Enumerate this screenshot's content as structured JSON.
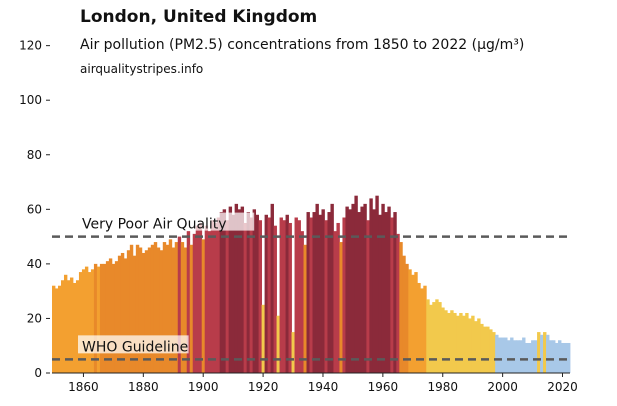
{
  "chart_data": {
    "type": "bar",
    "title": "London, United Kingdom",
    "subtitle": "Air pollution (PM2.5) concentrations from 1850 to 2022 (µg/m³)",
    "source": "airqualitystripes.info",
    "xlim": [
      1850,
      2022
    ],
    "ylim": [
      0,
      125
    ],
    "x_ticks": [
      "1860",
      "1880",
      "1900",
      "1920",
      "1940",
      "1960",
      "1980",
      "2000",
      "2020"
    ],
    "y_ticks": [
      "0",
      "20",
      "40",
      "60",
      "80",
      "100",
      "120"
    ],
    "grid": false,
    "reference_lines": [
      {
        "label": "Very Poor Air Quality",
        "value": 50
      },
      {
        "label": "WHO Guideline",
        "value": 5
      }
    ],
    "x": [
      1850,
      1851,
      1852,
      1853,
      1854,
      1855,
      1856,
      1857,
      1858,
      1859,
      1860,
      1861,
      1862,
      1863,
      1864,
      1865,
      1866,
      1867,
      1868,
      1869,
      1870,
      1871,
      1872,
      1873,
      1874,
      1875,
      1876,
      1877,
      1878,
      1879,
      1880,
      1881,
      1882,
      1883,
      1884,
      1885,
      1886,
      1887,
      1888,
      1889,
      1890,
      1891,
      1892,
      1893,
      1894,
      1895,
      1896,
      1897,
      1898,
      1899,
      1900,
      1901,
      1902,
      1903,
      1904,
      1905,
      1906,
      1907,
      1908,
      1909,
      1910,
      1911,
      1912,
      1913,
      1914,
      1915,
      1916,
      1917,
      1918,
      1919,
      1920,
      1921,
      1922,
      1923,
      1924,
      1925,
      1926,
      1927,
      1928,
      1929,
      1930,
      1931,
      1932,
      1933,
      1934,
      1935,
      1936,
      1937,
      1938,
      1939,
      1940,
      1941,
      1942,
      1943,
      1944,
      1945,
      1946,
      1947,
      1948,
      1949,
      1950,
      1951,
      1952,
      1953,
      1954,
      1955,
      1956,
      1957,
      1958,
      1959,
      1960,
      1961,
      1962,
      1963,
      1964,
      1965,
      1966,
      1967,
      1968,
      1969,
      1970,
      1971,
      1972,
      1973,
      1974,
      1975,
      1976,
      1977,
      1978,
      1979,
      1980,
      1981,
      1982,
      1983,
      1984,
      1985,
      1986,
      1987,
      1988,
      1989,
      1990,
      1991,
      1992,
      1993,
      1994,
      1995,
      1996,
      1997,
      1998,
      1999,
      2000,
      2001,
      2002,
      2003,
      2004,
      2005,
      2006,
      2007,
      2008,
      2009,
      2010,
      2011,
      2012,
      2013,
      2014,
      2015,
      2016,
      2017,
      2018,
      2019,
      2020,
      2021,
      2022
    ],
    "values": [
      32,
      31,
      32,
      34,
      36,
      34,
      35,
      33,
      34,
      37,
      38,
      39,
      37,
      38,
      40,
      39,
      40,
      40,
      41,
      42,
      40,
      41,
      43,
      44,
      42,
      45,
      47,
      43,
      47,
      46,
      44,
      45,
      46,
      47,
      48,
      46,
      45,
      48,
      47,
      49,
      46,
      48,
      50,
      48,
      46,
      52,
      47,
      51,
      54,
      55,
      49,
      54,
      52,
      56,
      55,
      57,
      59,
      60,
      56,
      61,
      58,
      62,
      60,
      61,
      55,
      59,
      57,
      60,
      58,
      56,
      25,
      58,
      57,
      62,
      54,
      21,
      57,
      56,
      58,
      55,
      15,
      57,
      56,
      52,
      47,
      59,
      57,
      59,
      62,
      58,
      60,
      56,
      59,
      62,
      52,
      55,
      48,
      57,
      61,
      60,
      62,
      65,
      59,
      61,
      62,
      56,
      64,
      60,
      65,
      58,
      62,
      59,
      61,
      57,
      59,
      51,
      48,
      43,
      40,
      38,
      36,
      37,
      33,
      31,
      32,
      27,
      25,
      26,
      27,
      26,
      24,
      23,
      22,
      23,
      22,
      21,
      22,
      21,
      22,
      20,
      21,
      19,
      20,
      18,
      17,
      17,
      16,
      15,
      14,
      13,
      13,
      13,
      12,
      13,
      12,
      12,
      12,
      13,
      11,
      11,
      12,
      12,
      15,
      14,
      15,
      14,
      12,
      12,
      11,
      12,
      11,
      11,
      11
    ]
  },
  "stripe_colors": {
    "yellow": "#f2c94c",
    "light_orange": "#f3a030",
    "orange": "#e8892a",
    "red": "#b83c4a",
    "dark_red": "#8b2a3a",
    "blue": "#a8c8e8",
    "reference_line": "#5a5a5a"
  }
}
